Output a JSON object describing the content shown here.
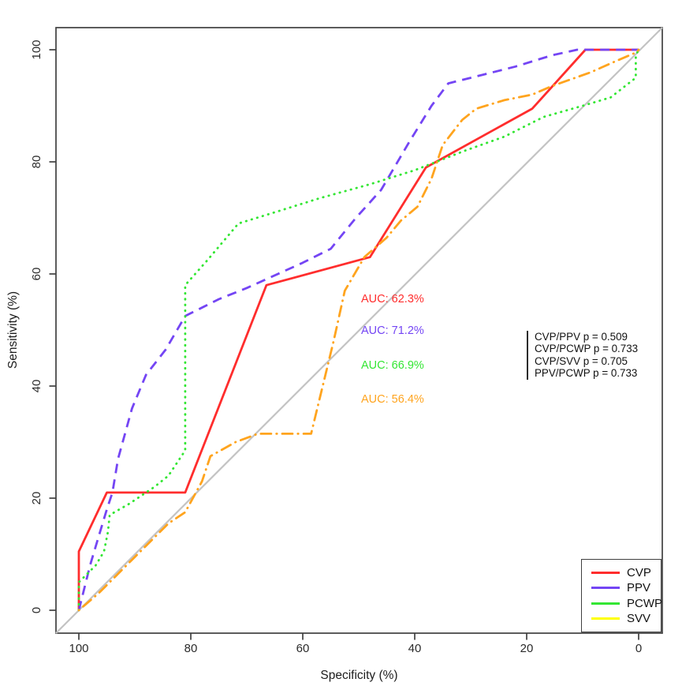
{
  "chart_data": {
    "type": "line",
    "subtype": "roc-curves",
    "title": "",
    "xlabel": "Specificity (%)",
    "ylabel": "Sensitivity (%)",
    "x_ticks": [
      100,
      80,
      60,
      40,
      20,
      0
    ],
    "y_ticks": [
      0,
      20,
      40,
      60,
      80,
      100
    ],
    "xlim": [
      100,
      0
    ],
    "ylim": [
      0,
      100
    ],
    "x_axis_reversed": true,
    "grid": false,
    "diagonal_reference_line": true,
    "diagonal_color": "#c3c3c3",
    "frame_color": "#3f3f3f",
    "series": [
      {
        "name": "CVP",
        "color": "#ff2d2d",
        "legend_color": "#ff2d2d",
        "line_style": "solid",
        "auc": 62.3,
        "points": [
          [
            100,
            0
          ],
          [
            100,
            10.5
          ],
          [
            95,
            21
          ],
          [
            81,
            21
          ],
          [
            66.5,
            58
          ],
          [
            48,
            63
          ],
          [
            38,
            79
          ],
          [
            19,
            89.5
          ],
          [
            9.5,
            100
          ],
          [
            0,
            100
          ]
        ]
      },
      {
        "name": "PPV",
        "color": "#7445f4",
        "legend_color": "#7445f4",
        "line_style": "dashed",
        "auc": 71.2,
        "points": [
          [
            100,
            0
          ],
          [
            99,
            4
          ],
          [
            98,
            8
          ],
          [
            96.5,
            13
          ],
          [
            95,
            18
          ],
          [
            94,
            21
          ],
          [
            93,
            27
          ],
          [
            90.5,
            36
          ],
          [
            88,
            42
          ],
          [
            84.5,
            46.5
          ],
          [
            81,
            52.5
          ],
          [
            75,
            55.5
          ],
          [
            70,
            57.5
          ],
          [
            60,
            62
          ],
          [
            55,
            64.5
          ],
          [
            50.5,
            70
          ],
          [
            46,
            75
          ],
          [
            41,
            83.5
          ],
          [
            37,
            90
          ],
          [
            34,
            94
          ],
          [
            28,
            95.5
          ],
          [
            22,
            97
          ],
          [
            15.5,
            99
          ],
          [
            11,
            100
          ],
          [
            0,
            100
          ]
        ]
      },
      {
        "name": "PCWP",
        "color": "#33e633",
        "legend_color": "#33e633",
        "line_style": "dotted",
        "auc": 66.9,
        "points": [
          [
            100,
            0
          ],
          [
            100,
            5
          ],
          [
            97,
            8
          ],
          [
            95.5,
            10.5
          ],
          [
            94.8,
            14
          ],
          [
            94.5,
            17
          ],
          [
            91,
            19
          ],
          [
            86.5,
            22
          ],
          [
            84,
            24
          ],
          [
            81,
            28.5
          ],
          [
            81,
            58
          ],
          [
            77,
            62.5
          ],
          [
            71.5,
            69
          ],
          [
            65,
            71
          ],
          [
            57,
            73.5
          ],
          [
            48,
            76
          ],
          [
            40,
            78.5
          ],
          [
            31,
            82
          ],
          [
            24,
            84.5
          ],
          [
            17,
            88
          ],
          [
            10,
            90
          ],
          [
            5,
            91.5
          ],
          [
            0.5,
            95
          ],
          [
            0.5,
            99
          ],
          [
            0,
            100
          ]
        ]
      },
      {
        "name": "SVV",
        "color": "#ffa41e",
        "legend_color": "#ffff00",
        "line_style": "dashdot",
        "auc": 56.4,
        "points": [
          [
            100,
            0
          ],
          [
            96.5,
            3
          ],
          [
            93.5,
            6
          ],
          [
            90.5,
            9
          ],
          [
            88,
            11.5
          ],
          [
            84,
            15.5
          ],
          [
            81,
            17.5
          ],
          [
            78,
            23
          ],
          [
            76.5,
            27.5
          ],
          [
            72,
            30
          ],
          [
            68,
            31.5
          ],
          [
            58.5,
            31.5
          ],
          [
            54.5,
            48
          ],
          [
            52.5,
            57
          ],
          [
            49,
            63
          ],
          [
            45,
            66.5
          ],
          [
            42.5,
            69.5
          ],
          [
            39.5,
            72
          ],
          [
            37,
            77
          ],
          [
            35,
            83
          ],
          [
            31.5,
            87.5
          ],
          [
            29,
            89.5
          ],
          [
            24,
            91
          ],
          [
            19,
            92
          ],
          [
            15.5,
            93.5
          ],
          [
            8.5,
            96
          ],
          [
            4,
            98
          ],
          [
            0.5,
            99.5
          ],
          [
            0,
            100
          ]
        ]
      }
    ],
    "auc_labels": [
      {
        "text": "AUC: 62.3%",
        "series": "CVP",
        "color": "#ff2d2d"
      },
      {
        "text": "AUC: 71.2%",
        "series": "PPV",
        "color": "#7445f4"
      },
      {
        "text": "AUC: 66.9%",
        "series": "PCWP",
        "color": "#33e633"
      },
      {
        "text": "AUC: 56.4%",
        "series": "SVV",
        "color": "#ffa41e"
      }
    ],
    "p_value_annotations": [
      "CVP/PPV p = 0.509",
      "CVP/PCWP p = 0.733",
      "CVP/SVV p = 0.705",
      "PPV/PCWP p = 0.733"
    ],
    "legend": {
      "position": "bottom-right",
      "entries": [
        {
          "label": "CVP",
          "color": "#ff2d2d"
        },
        {
          "label": "PPV",
          "color": "#7445f4"
        },
        {
          "label": "PCWP",
          "color": "#33e633"
        },
        {
          "label": "SVV",
          "color": "#ffff00"
        }
      ]
    }
  }
}
